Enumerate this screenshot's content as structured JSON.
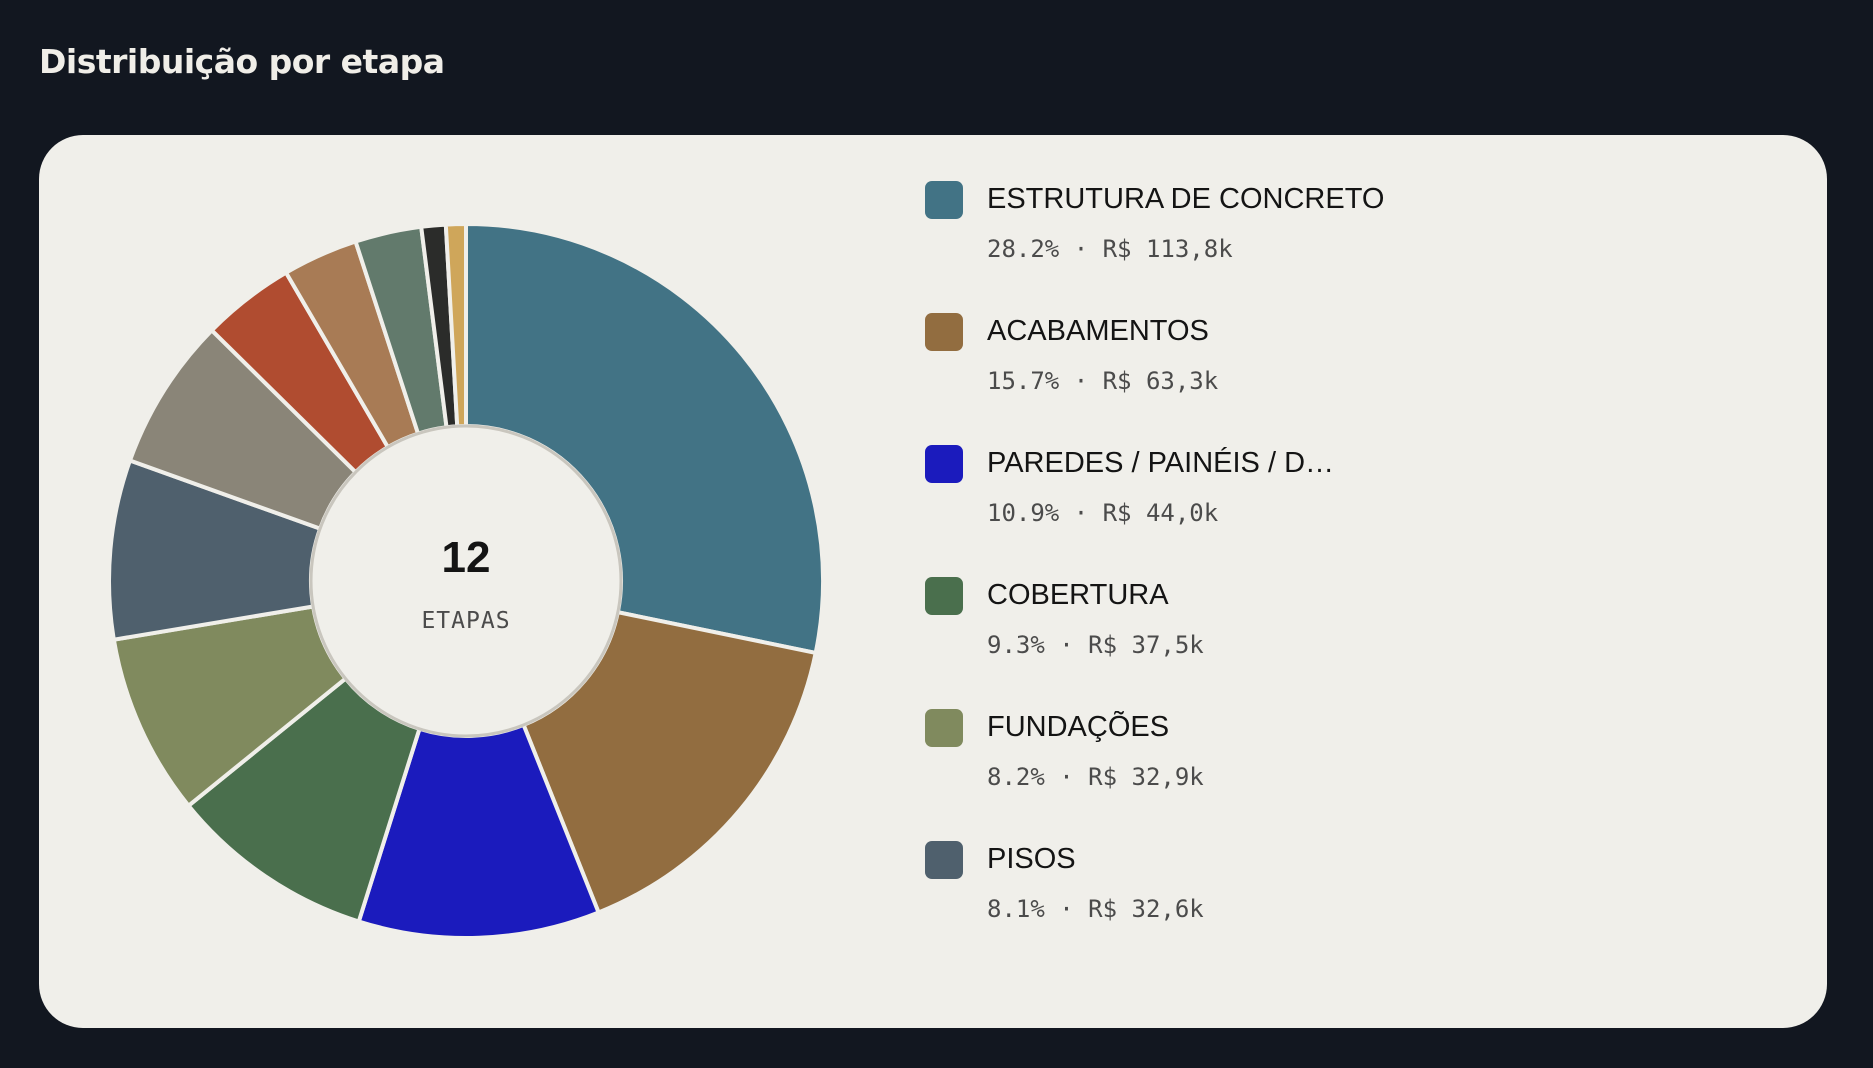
{
  "header": {
    "title": "Distribuição por etapa"
  },
  "chart_data": {
    "type": "pie",
    "donut": true,
    "center_value": "12",
    "center_label": "ETAPAS",
    "slices": [
      {
        "label": "ESTRUTURA DE CONCRETO",
        "percent": 28.2,
        "value_text": "R$ 113,8k",
        "color": "#427385"
      },
      {
        "label": "ACABAMENTOS",
        "percent": 15.7,
        "value_text": "R$ 63,3k",
        "color": "#926d40"
      },
      {
        "label": "PAREDES / PAINÉIS / D…",
        "percent": 10.9,
        "value_text": "R$ 44,0k",
        "color": "#1b1bbd"
      },
      {
        "label": "COBERTURA",
        "percent": 9.3,
        "value_text": "R$ 37,5k",
        "color": "#4a6f4d"
      },
      {
        "label": "FUNDAÇÕES",
        "percent": 8.2,
        "value_text": "R$ 32,9k",
        "color": "#808a5e"
      },
      {
        "label": "PISOS",
        "percent": 8.1,
        "value_text": "R$ 32,6k",
        "color": "#4f606d"
      },
      {
        "label": "",
        "percent": 6.9,
        "value_text": "",
        "color": "#8a8578"
      },
      {
        "label": "",
        "percent": 4.2,
        "value_text": "",
        "color": "#b04c30"
      },
      {
        "label": "",
        "percent": 3.4,
        "value_text": "",
        "color": "#a87b55"
      },
      {
        "label": "",
        "percent": 3.0,
        "value_text": "",
        "color": "#627a6c"
      },
      {
        "label": "",
        "percent": 1.1,
        "value_text": "",
        "color": "#2b2c2a"
      },
      {
        "label": "",
        "percent": 0.9,
        "value_text": "",
        "color": "#cfa65a"
      }
    ]
  }
}
